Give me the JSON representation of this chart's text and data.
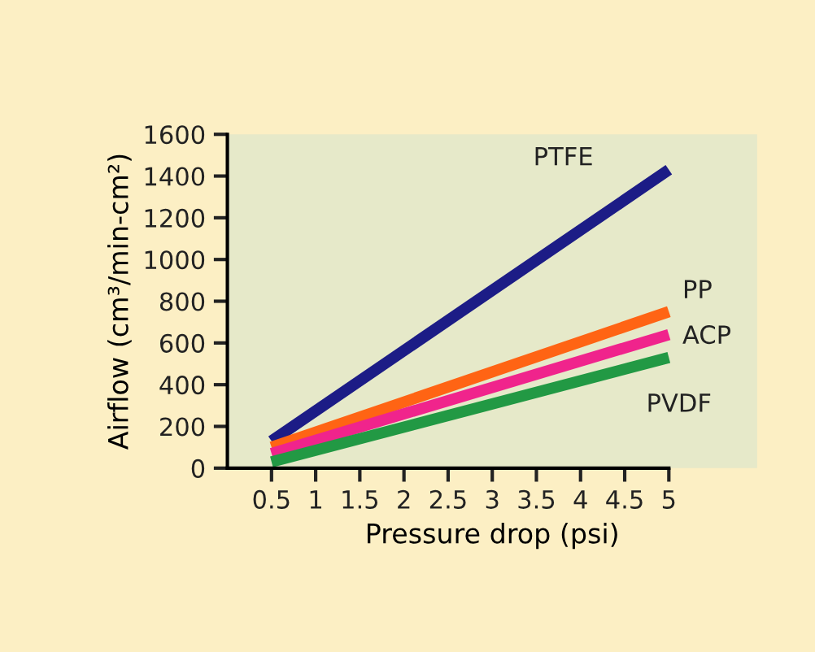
{
  "chart_data": {
    "type": "line",
    "xlabel": "Pressure drop (psi)",
    "ylabel": "Airflow (cm³/min-cm²)",
    "x": [
      0.5,
      5
    ],
    "series": [
      {
        "name": "PTFE",
        "color": "#1c1c86",
        "values": [
          130,
          1430
        ]
      },
      {
        "name": "PP",
        "color": "#ff6414",
        "values": [
          100,
          750
        ]
      },
      {
        "name": "ACP",
        "color": "#f0248c",
        "values": [
          70,
          640
        ]
      },
      {
        "name": "PVDF",
        "color": "#229944",
        "values": [
          30,
          530
        ]
      }
    ],
    "xlim": [
      0,
      6
    ],
    "ylim": [
      0,
      1600
    ],
    "xticks": [
      0.5,
      1,
      1.5,
      2,
      2.5,
      3,
      3.5,
      4,
      4.5,
      5
    ],
    "yticks": [
      0,
      200,
      400,
      600,
      800,
      1000,
      1200,
      1400,
      1600
    ],
    "grid": false,
    "legend": false,
    "marker": "none",
    "line_style": "solid"
  }
}
